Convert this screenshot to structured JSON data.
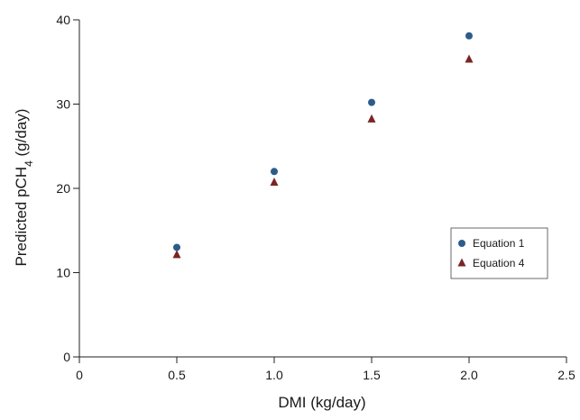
{
  "chart_data": {
    "type": "scatter",
    "title": "",
    "xlabel": "DMI (kg/day)",
    "ylabel": {
      "prefix": "Predicted pCH",
      "subscript": "4",
      "suffix": " (g/day)"
    },
    "xlim": [
      0,
      2.5
    ],
    "ylim": [
      0,
      40
    ],
    "xticks": [
      "0",
      "0.5",
      "1.0",
      "1.5",
      "2.0",
      "2.5"
    ],
    "xtick_values": [
      0,
      0.5,
      1.0,
      1.5,
      2.0,
      2.5
    ],
    "yticks": [
      "0",
      "10",
      "20",
      "30",
      "40"
    ],
    "ytick_values": [
      0,
      10,
      20,
      30,
      40
    ],
    "grid": false,
    "legend_position": "right",
    "series": [
      {
        "name": "Equation 1",
        "marker": "circle",
        "color": "#2b5d8a",
        "x": [
          0.5,
          1.0,
          1.5,
          2.0
        ],
        "y": [
          13.0,
          22.0,
          30.2,
          38.1
        ]
      },
      {
        "name": "Equation 4",
        "marker": "triangle",
        "color": "#7a2425",
        "x": [
          0.5,
          1.0,
          1.5,
          2.0
        ],
        "y": [
          12.1,
          20.7,
          28.2,
          35.3
        ]
      }
    ]
  }
}
